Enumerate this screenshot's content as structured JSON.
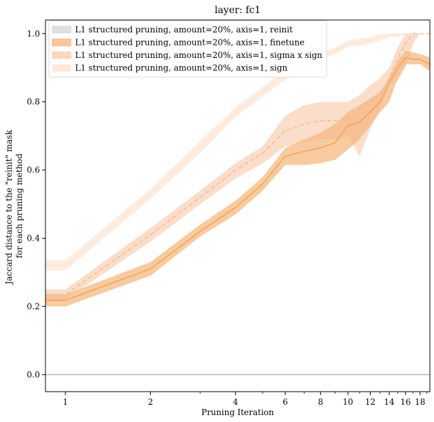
{
  "chart_data": {
    "type": "line",
    "title": "layer: fc1",
    "xlabel": "Pruning Iteration",
    "ylabel": [
      "Jaccard distance to the \"reinit\" mask",
      "for each pruning method"
    ],
    "x_scale": "log",
    "xlim": [
      0.85,
      19.5
    ],
    "ylim": [
      -0.05,
      1.04
    ],
    "xticks": [
      1,
      2,
      4,
      6,
      8,
      10,
      12,
      14,
      16,
      18
    ],
    "xtick_labels": [
      "1",
      "2",
      "4",
      "6",
      "8",
      "10",
      "12",
      "14",
      "16",
      "18"
    ],
    "yticks": [
      0.0,
      0.2,
      0.4,
      0.6,
      0.8,
      1.0
    ],
    "ytick_labels": [
      "0.0",
      "0.2",
      "0.4",
      "0.6",
      "0.8",
      "1.0"
    ],
    "grid": false,
    "legend_position": "top-left",
    "x": [
      0.85,
      1,
      2,
      3,
      4,
      5,
      6,
      7,
      8,
      9,
      10,
      11,
      12,
      13,
      14,
      15,
      16,
      17,
      18,
      19.5
    ],
    "series": [
      {
        "name": "L1 structured pruning, amount=20%, axis=1, reinit",
        "color": "#bdbdbd",
        "line_style": "solid",
        "values": [
          0,
          0,
          0,
          0,
          0,
          0,
          0,
          0,
          0,
          0,
          0,
          0,
          0,
          0,
          0,
          0,
          0,
          0,
          0,
          0
        ],
        "lower": [
          0,
          0,
          0,
          0,
          0,
          0,
          0,
          0,
          0,
          0,
          0,
          0,
          0,
          0,
          0,
          0,
          0,
          0,
          0,
          0
        ],
        "upper": [
          0,
          0,
          0,
          0,
          0,
          0,
          0,
          0,
          0,
          0,
          0,
          0,
          0,
          0,
          0,
          0,
          0,
          0,
          0,
          0
        ]
      },
      {
        "name": "L1 structured pruning, amount=20%, axis=1, finetune",
        "color": "#f0a050",
        "line_style": "solid",
        "values": [
          0.218,
          0.218,
          0.31,
          0.42,
          0.49,
          0.56,
          0.64,
          0.655,
          0.665,
          0.68,
          0.73,
          0.74,
          0.77,
          0.8,
          0.855,
          0.9,
          0.93,
          0.925,
          0.925,
          0.91
        ],
        "lower": [
          0.2,
          0.2,
          0.29,
          0.405,
          0.47,
          0.54,
          0.615,
          0.615,
          0.62,
          0.63,
          0.66,
          0.69,
          0.73,
          0.77,
          0.8,
          0.87,
          0.91,
          0.91,
          0.91,
          0.89
        ],
        "upper": [
          0.235,
          0.235,
          0.33,
          0.44,
          0.51,
          0.58,
          0.665,
          0.69,
          0.71,
          0.735,
          0.77,
          0.79,
          0.81,
          0.83,
          0.87,
          0.92,
          0.95,
          0.945,
          0.94,
          0.93
        ]
      },
      {
        "name": "L1 structured pruning, amount=20%, axis=1, sigma x sign",
        "color": "#f4b68a",
        "line_style": "dashed",
        "values": [
          0.235,
          0.235,
          0.41,
          0.52,
          0.6,
          0.65,
          0.715,
          0.735,
          0.745,
          0.745,
          0.75,
          0.78,
          0.8,
          0.82,
          0.87,
          0.93,
          0.97,
          1.0,
          1.0,
          1.0
        ],
        "lower": [
          0.22,
          0.22,
          0.39,
          0.5,
          0.575,
          0.62,
          0.67,
          0.68,
          0.69,
          0.69,
          0.7,
          0.64,
          0.72,
          0.78,
          0.85,
          0.86,
          0.9,
          0.97,
          1.0,
          1.0
        ],
        "upper": [
          0.25,
          0.25,
          0.43,
          0.54,
          0.62,
          0.67,
          0.76,
          0.79,
          0.8,
          0.8,
          0.8,
          0.82,
          0.85,
          0.87,
          0.9,
          0.96,
          1.0,
          1.0,
          1.0,
          1.0
        ]
      },
      {
        "name": "L1 structured pruning, amount=20%, axis=1, sign",
        "color": "#fad7bd",
        "line_style": "dotted",
        "values": [
          0.32,
          0.32,
          0.53,
          0.67,
          0.77,
          0.83,
          0.88,
          0.91,
          0.93,
          0.95,
          0.97,
          0.975,
          0.98,
          0.99,
          0.995,
          1.0,
          1.0,
          1.0,
          1.0,
          1.0
        ],
        "lower": [
          0.305,
          0.305,
          0.515,
          0.65,
          0.755,
          0.815,
          0.865,
          0.895,
          0.92,
          0.94,
          0.96,
          0.965,
          0.97,
          0.98,
          0.99,
          0.99,
          0.995,
          1.0,
          1.0,
          1.0
        ],
        "upper": [
          0.335,
          0.335,
          0.545,
          0.685,
          0.785,
          0.845,
          0.895,
          0.925,
          0.945,
          0.96,
          0.98,
          0.985,
          0.99,
          1.0,
          1.0,
          1.0,
          1.0,
          1.0,
          1.0,
          1.0
        ]
      }
    ]
  }
}
